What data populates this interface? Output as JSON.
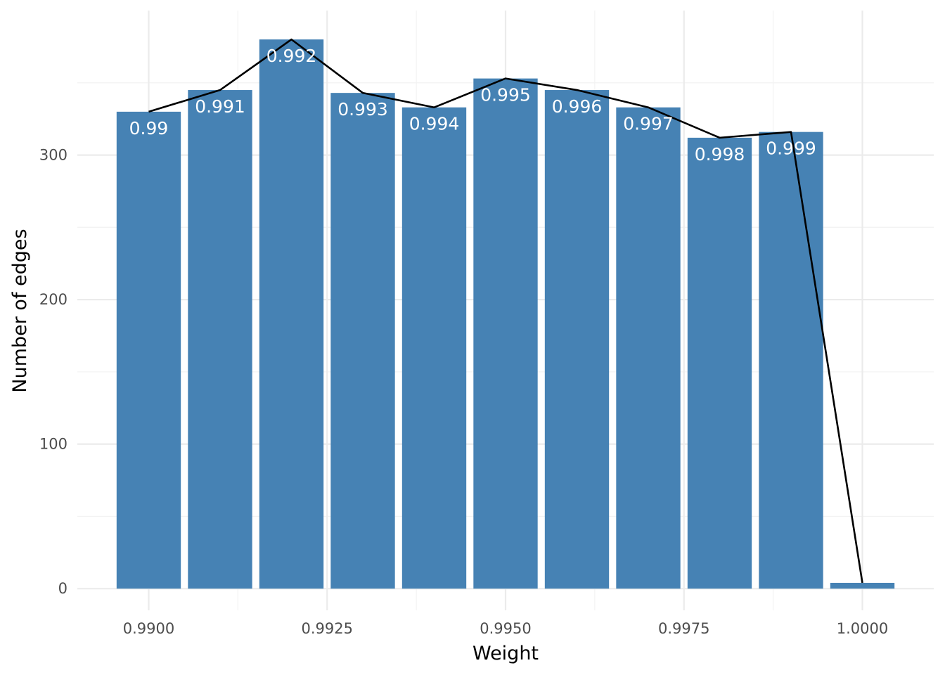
{
  "chart_data": {
    "type": "bar",
    "title": "",
    "xlabel": "Weight",
    "ylabel": "Number of edges",
    "x": [
      0.99,
      0.991,
      0.992,
      0.993,
      0.994,
      0.995,
      0.996,
      0.997,
      0.998,
      0.999,
      1.0
    ],
    "values": [
      330,
      345,
      380,
      343,
      333,
      353,
      345,
      333,
      312,
      316,
      4
    ],
    "bar_labels": [
      "0.99",
      "0.991",
      "0.992",
      "0.993",
      "0.994",
      "0.995",
      "0.996",
      "0.997",
      "0.998",
      "0.999",
      ""
    ],
    "line_values": [
      330,
      345,
      380,
      343,
      333,
      353,
      345,
      333,
      312,
      316,
      4
    ],
    "x_ticks": [
      0.99,
      0.9925,
      0.995,
      0.9975,
      1.0
    ],
    "x_tick_labels": [
      "0.9900",
      "0.9925",
      "0.9950",
      "0.9975",
      "1.0000"
    ],
    "y_ticks": [
      0,
      100,
      200,
      300
    ],
    "y_tick_labels": [
      "0",
      "100",
      "200",
      "300"
    ],
    "xlim": [
      0.989,
      1.001
    ],
    "ylim": [
      -15,
      400
    ],
    "bar_width": 0.0009,
    "grid": true,
    "legend": "none",
    "colors": {
      "bar": "#4682b4",
      "line": "#000000"
    }
  }
}
